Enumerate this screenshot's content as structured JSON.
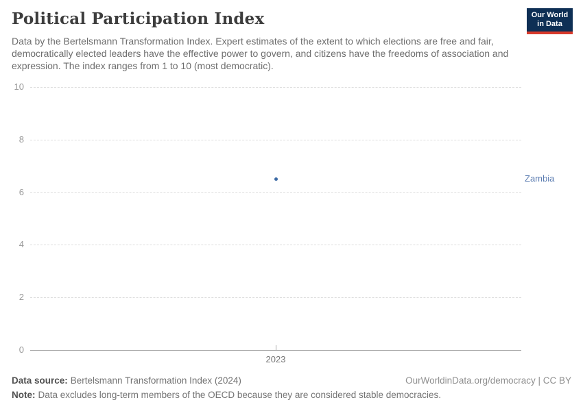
{
  "header": {
    "title": "Political Participation Index",
    "subtitle": "Data by the Bertelsmann Transformation Index. Expert estimates of the extent to which elections are free and fair, democratically elected leaders have the effective power to govern, and citizens have the freedoms of association and expression. The index ranges from 1 to 10 (most democratic).",
    "logo": {
      "line1": "Our World",
      "line2": "in Data",
      "bg_color": "#0e2f55",
      "accent_color": "#d93a2b"
    }
  },
  "chart_data": {
    "type": "scatter",
    "title": "Political Participation Index",
    "series": [
      {
        "name": "Zambia",
        "x": [
          2023
        ],
        "values": [
          6.5
        ],
        "point_color": "#3c6aa5",
        "label_color": "#5b7cb1"
      }
    ],
    "x_tick_labels": [
      "2023"
    ],
    "y_ticks": [
      0,
      2,
      4,
      6,
      8,
      10
    ],
    "ylim": [
      0,
      10
    ],
    "xlabel": "",
    "ylabel": "",
    "grid": "horizontal-dashed",
    "legend_position": "right-of-plot-entity-label",
    "grid_color": "#dcdcdc",
    "axis_color": "#a8a8a8",
    "tick_label_color": "#999999"
  },
  "footer": {
    "data_source_label": "Data source:",
    "data_source_value": "Bertelsmann Transformation Index (2024)",
    "note_label": "Note:",
    "note_value": "Data excludes long-term members of the OECD because they are considered stable democracies.",
    "link_text": "OurWorldinData.org/democracy | CC BY"
  }
}
